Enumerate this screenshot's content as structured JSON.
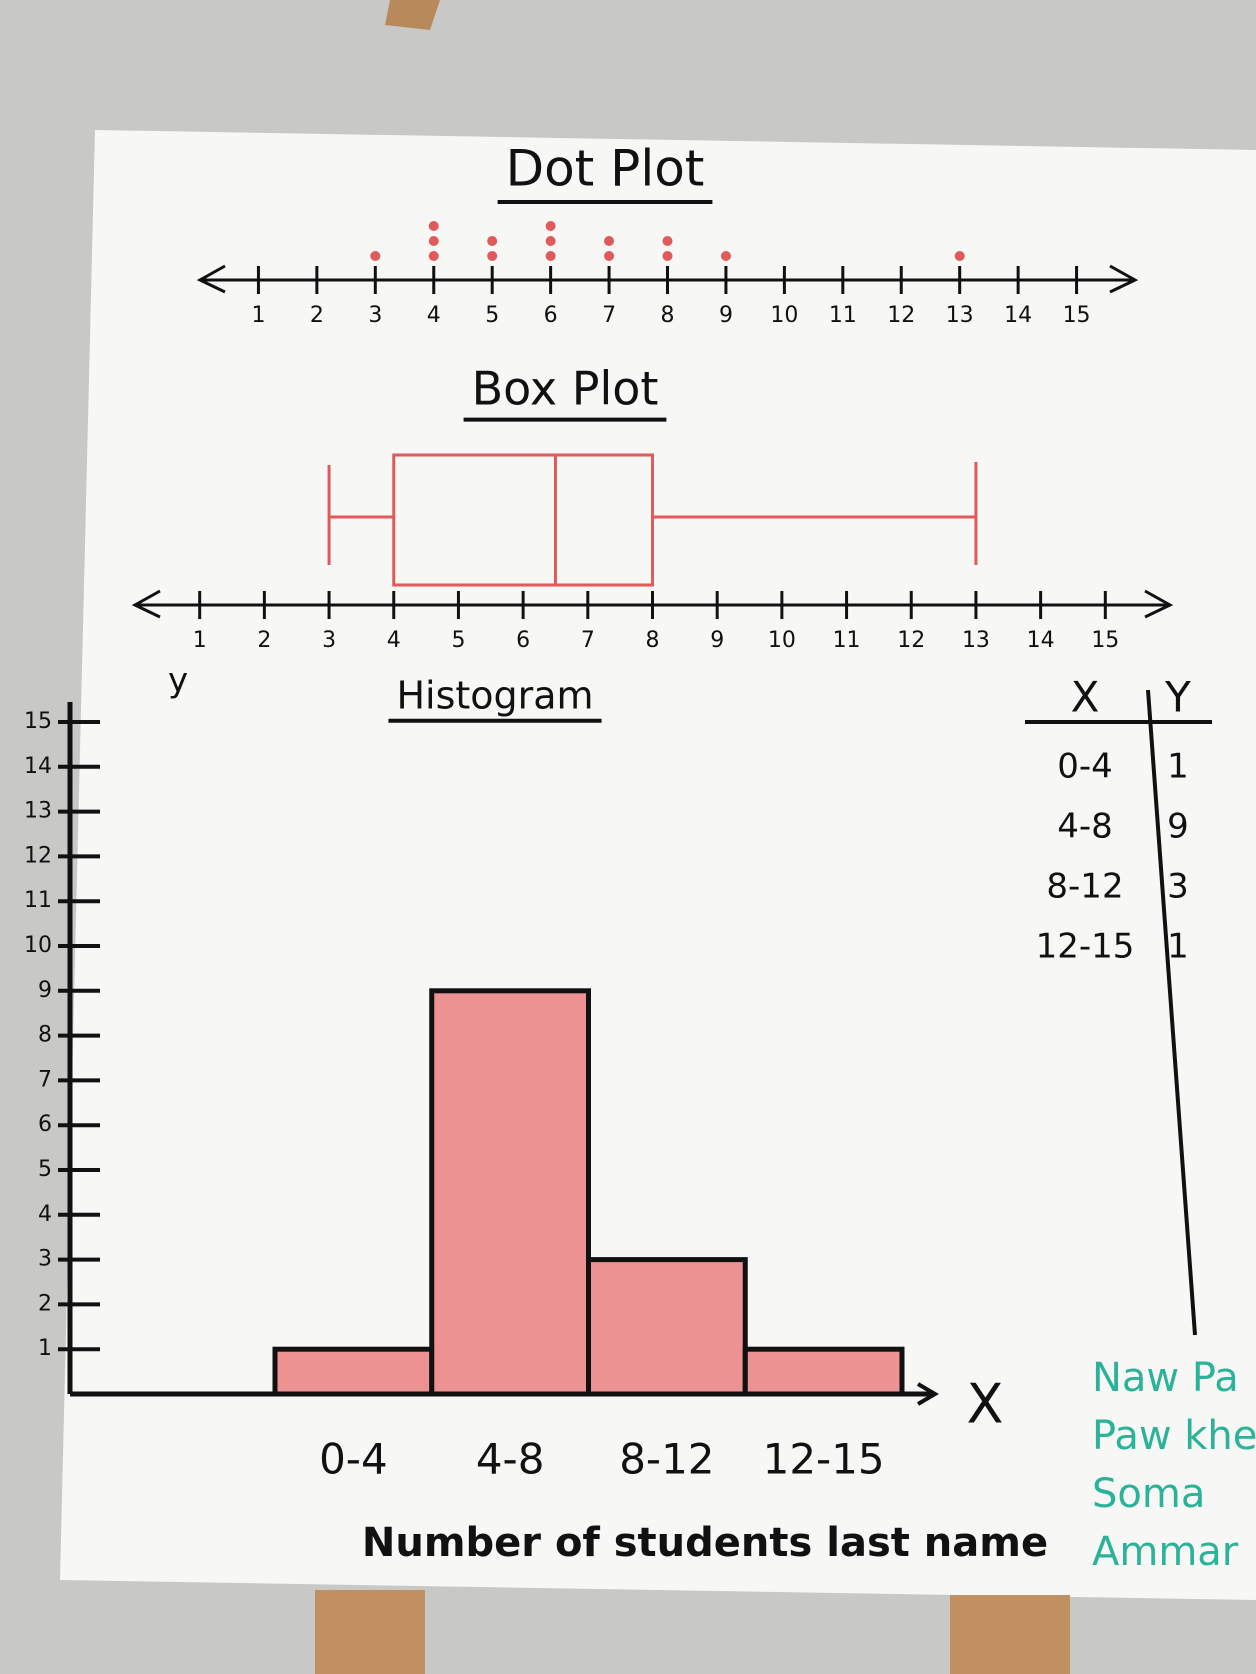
{
  "chart_data": [
    {
      "type": "dot",
      "title": "Dot Plot",
      "x": [
        3,
        4,
        5,
        6,
        7,
        8,
        9,
        13
      ],
      "values": [
        1,
        3,
        2,
        3,
        2,
        2,
        1,
        1
      ],
      "color": "#e05a5a",
      "xlim": [
        0,
        16
      ],
      "xticks": [
        1,
        2,
        3,
        4,
        5,
        6,
        7,
        8,
        9,
        10,
        11,
        12,
        13,
        14,
        15
      ]
    },
    {
      "type": "box",
      "title": "Box Plot",
      "min": 3,
      "q1": 4,
      "median": 6.5,
      "q3": 8,
      "max": 13,
      "color": "#e05a5a",
      "xlim": [
        0,
        16
      ],
      "xticks": [
        1,
        2,
        3,
        4,
        5,
        6,
        7,
        8,
        9,
        10,
        11,
        12,
        13,
        14,
        15
      ]
    },
    {
      "type": "histogram",
      "title": "Histogram",
      "categories": [
        "0-4",
        "4-8",
        "8-12",
        "12-15"
      ],
      "values": [
        1,
        9,
        3,
        1
      ],
      "color": "#e8787b",
      "ylim": [
        0,
        15
      ],
      "yticks": [
        1,
        2,
        3,
        4,
        5,
        6,
        7,
        8,
        9,
        10,
        11,
        12,
        13,
        14,
        15
      ],
      "ylabel": "y",
      "x_axis_label": "X",
      "xlabel": "Number of students last name"
    }
  ],
  "table": {
    "header": [
      "X",
      "Y"
    ],
    "rows": [
      [
        "0-4",
        1
      ],
      [
        "4-8",
        9
      ],
      [
        "8-12",
        3
      ],
      [
        "12-15",
        1
      ]
    ]
  },
  "names": [
    "Naw Pa",
    "Paw khe",
    "Soma",
    "Ammar"
  ]
}
